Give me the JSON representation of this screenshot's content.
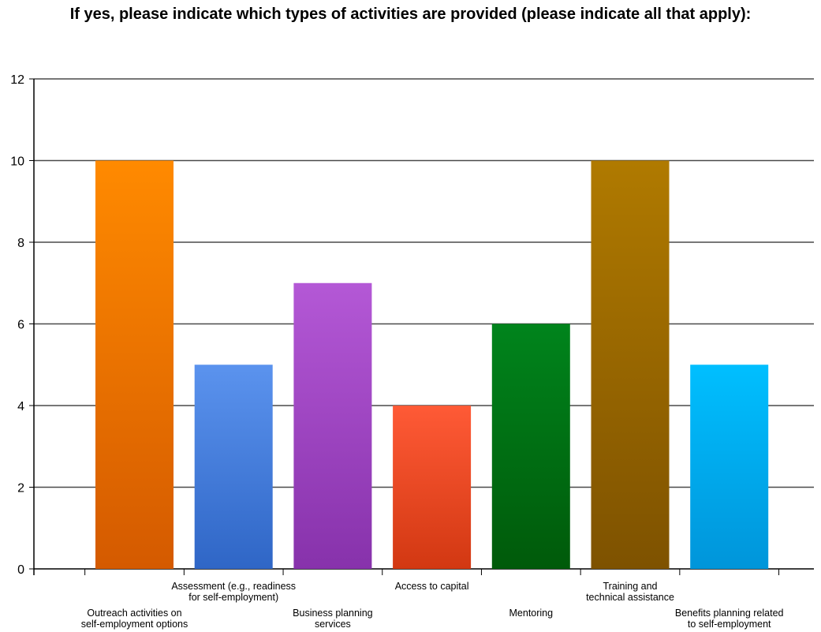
{
  "chart_data": {
    "type": "bar",
    "title": "If yes, please indicate which types of activities are provided (please indicate all that apply):",
    "xlabel": "",
    "ylabel": "",
    "ylim": [
      0,
      12
    ],
    "yticks": [
      0,
      2,
      4,
      6,
      8,
      10,
      12
    ],
    "grid": true,
    "legend": "none",
    "categories": [
      "Outreach activities on self-employment options",
      "Assessment (e.g., readiness for self-employment)",
      "Business planning services",
      "Access to capital",
      "Mentoring",
      "Training and technical assistance",
      "Benefits planning related to self-employment"
    ],
    "category_label_lines": [
      [
        "Outreach activities on",
        "self-employment options"
      ],
      [
        "Assessment (e.g., readiness",
        "for self-employment)"
      ],
      [
        "Business planning",
        "services"
      ],
      [
        "Access to capital"
      ],
      [
        "Mentoring"
      ],
      [
        "Training and",
        "technical assistance"
      ],
      [
        "Benefits planning related",
        "to self-employment"
      ]
    ],
    "values": [
      10,
      5,
      7,
      4,
      6,
      10,
      5
    ],
    "colors": [
      [
        "#ff8a00",
        "#d45a00"
      ],
      [
        "#5b93ee",
        "#2f66c6"
      ],
      [
        "#b458d6",
        "#8732ab"
      ],
      [
        "#ff5a36",
        "#d23812"
      ],
      [
        "#00841c",
        "#005a0a"
      ],
      [
        "#b07a00",
        "#7e5200"
      ],
      [
        "#00bfff",
        "#0095da"
      ]
    ]
  }
}
